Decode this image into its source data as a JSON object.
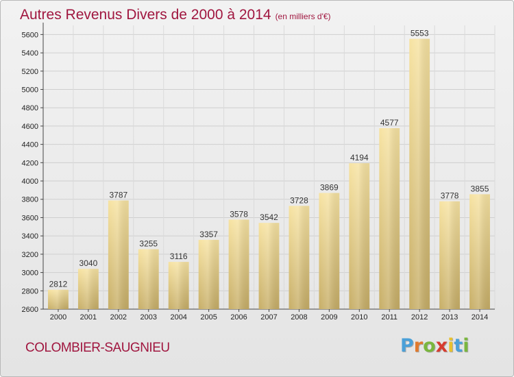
{
  "header": {
    "title": "Autres Revenus Divers de 2000 à 2014",
    "subtitle": "(en milliers d'€)"
  },
  "footer": {
    "town": "COLOMBIER-SAUGNIEU",
    "logo": "Proxiti"
  },
  "colors": {
    "title": "#a0163f",
    "bar_top": "#f7e3a2",
    "bar_bottom": "#c7ae67",
    "logo_letters": [
      "#4aa0d8",
      "#e07a2e",
      "#7ab63e",
      "#d63b2f",
      "#e8c12d",
      "#4aa0d8",
      "#7ab63e"
    ]
  },
  "chart_data": {
    "type": "bar",
    "title": "Autres Revenus Divers de 2000 à 2014",
    "subtitle": "(en milliers d'€)",
    "categories": [
      "2000",
      "2001",
      "2002",
      "2003",
      "2004",
      "2005",
      "2006",
      "2007",
      "2008",
      "2009",
      "2010",
      "2011",
      "2012",
      "2013",
      "2014"
    ],
    "values": [
      2812,
      3040,
      3787,
      3255,
      3116,
      3357,
      3578,
      3542,
      3728,
      3869,
      4194,
      4577,
      5553,
      3778,
      3855
    ],
    "ylim": [
      2600,
      5700
    ],
    "yticks": [
      2600,
      2800,
      3000,
      3200,
      3400,
      3600,
      3800,
      4000,
      4200,
      4400,
      4600,
      4800,
      5000,
      5200,
      5400,
      5600
    ],
    "xlabel": "",
    "ylabel": "",
    "grid": true,
    "data_labels": true
  }
}
